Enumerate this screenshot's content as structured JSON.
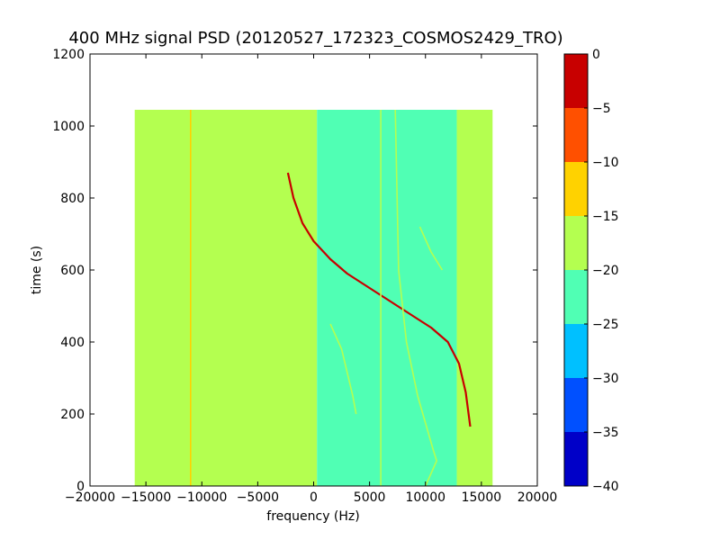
{
  "chart_data": {
    "type": "heatmap",
    "title": "400 MHz signal PSD (20120527_172323_COSMOS2429_TRO)",
    "xlabel": "frequency (Hz)",
    "ylabel": "time (s)",
    "xlim": [
      -20000,
      20000
    ],
    "ylim": [
      0,
      1200
    ],
    "x_ticks": [
      -20000,
      -15000,
      -10000,
      -5000,
      0,
      5000,
      10000,
      15000,
      20000
    ],
    "y_ticks": [
      0,
      200,
      400,
      600,
      800,
      1000,
      1200
    ],
    "data_extent": {
      "x": [
        -16000,
        16000
      ],
      "y": [
        0,
        1045
      ]
    },
    "colorbar": {
      "range": [
        -40,
        0
      ],
      "ticks": [
        0,
        -5,
        -10,
        -15,
        -20,
        -25,
        -30,
        -35,
        -40
      ],
      "levels": [
        {
          "from": -40,
          "to": -35,
          "color": "#0000c8"
        },
        {
          "from": -35,
          "to": -30,
          "color": "#0050ff"
        },
        {
          "from": -30,
          "to": -25,
          "color": "#00c0ff"
        },
        {
          "from": -25,
          "to": -20,
          "color": "#50ffb4"
        },
        {
          "from": -20,
          "to": -15,
          "color": "#b4ff50"
        },
        {
          "from": -15,
          "to": -10,
          "color": "#ffd200"
        },
        {
          "from": -10,
          "to": -5,
          "color": "#ff5000"
        },
        {
          "from": -5,
          "to": 0,
          "color": "#c80000"
        }
      ]
    },
    "regions": [
      {
        "x": [
          -16000,
          300
        ],
        "y": [
          0,
          1045
        ],
        "level_db": -17.5
      },
      {
        "x": [
          300,
          12800
        ],
        "y": [
          0,
          1045
        ],
        "level_db": -22.5
      },
      {
        "x": [
          12800,
          16000
        ],
        "y": [
          0,
          1045
        ],
        "level_db": -17.5
      }
    ],
    "traces": [
      {
        "level_db": -2.5,
        "points": [
          [
            -2300,
            870
          ],
          [
            -1800,
            800
          ],
          [
            -1000,
            730
          ],
          [
            0,
            680
          ],
          [
            1500,
            630
          ],
          [
            3000,
            590
          ],
          [
            4500,
            560
          ],
          [
            5500,
            540
          ],
          [
            6500,
            520
          ],
          [
            7500,
            500
          ],
          [
            9000,
            470
          ],
          [
            10500,
            440
          ],
          [
            12000,
            400
          ],
          [
            13000,
            340
          ],
          [
            13600,
            260
          ],
          [
            14000,
            165
          ]
        ]
      },
      {
        "level_db": -12.5,
        "points": [
          [
            -11000,
            1045
          ],
          [
            -11000,
            0
          ]
        ]
      },
      {
        "level_db": -17.5,
        "points": [
          [
            6000,
            1045
          ],
          [
            6000,
            0
          ]
        ]
      },
      {
        "level_db": -17.5,
        "points": [
          [
            7300,
            1045
          ],
          [
            7600,
            600
          ],
          [
            8300,
            400
          ],
          [
            9300,
            250
          ],
          [
            10700,
            100
          ],
          [
            11000,
            70
          ],
          [
            10000,
            0
          ]
        ]
      },
      {
        "level_db": -17.5,
        "points": [
          [
            9500,
            720
          ],
          [
            10500,
            650
          ],
          [
            11500,
            600
          ]
        ]
      },
      {
        "level_db": -17.5,
        "points": [
          [
            1500,
            450
          ],
          [
            2500,
            380
          ],
          [
            3500,
            250
          ],
          [
            3800,
            200
          ]
        ]
      }
    ]
  }
}
